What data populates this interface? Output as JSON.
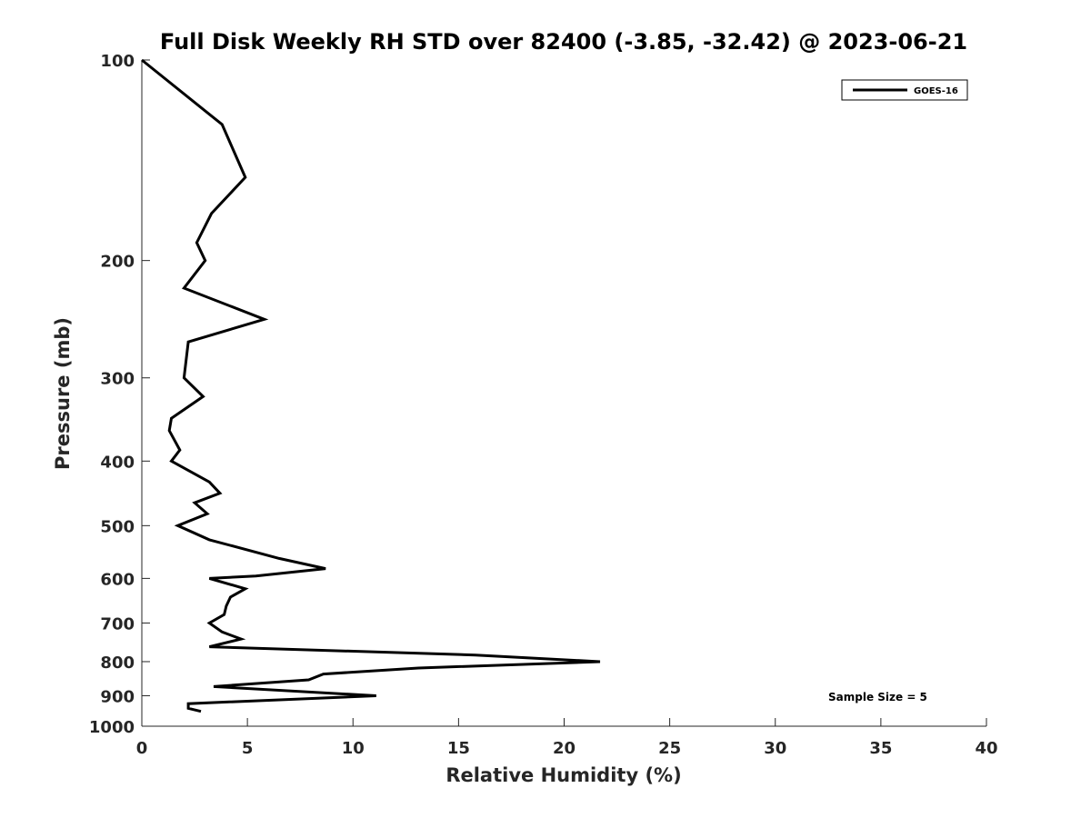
{
  "chart_data": {
    "type": "line",
    "title": "Full Disk Weekly RH STD over 82400 (-3.85, -32.42) @ 2023-06-21",
    "xlabel": "Relative Humidity (%)",
    "ylabel": "Pressure (mb)",
    "xlim": [
      0,
      40
    ],
    "ylim": [
      100,
      1000
    ],
    "yscale": "log",
    "y_reversed": true,
    "grid": false,
    "x_ticks": [
      "0",
      "5",
      "10",
      "15",
      "20",
      "25",
      "30",
      "35",
      "40"
    ],
    "y_ticks": [
      "100",
      "200",
      "300",
      "400",
      "500",
      "600",
      "700",
      "800",
      "900",
      "1000"
    ],
    "legend_position": "top-right",
    "annotation": "Sample Size = 5",
    "series": [
      {
        "name": "GOES-16",
        "color": "#000000",
        "points": [
          [
            0.0,
            100
          ],
          [
            3.8,
            125
          ],
          [
            4.9,
            150
          ],
          [
            3.3,
            170
          ],
          [
            2.6,
            188
          ],
          [
            3.0,
            200
          ],
          [
            2.0,
            220
          ],
          [
            5.8,
            245
          ],
          [
            2.2,
            265
          ],
          [
            2.0,
            300
          ],
          [
            2.9,
            320
          ],
          [
            1.4,
            345
          ],
          [
            1.3,
            360
          ],
          [
            1.8,
            385
          ],
          [
            1.4,
            400
          ],
          [
            3.2,
            430
          ],
          [
            3.7,
            447
          ],
          [
            2.5,
            462
          ],
          [
            3.1,
            480
          ],
          [
            1.7,
            500
          ],
          [
            3.2,
            525
          ],
          [
            6.5,
            560
          ],
          [
            8.7,
            580
          ],
          [
            5.4,
            595
          ],
          [
            3.2,
            600
          ],
          [
            4.9,
            622
          ],
          [
            4.2,
            640
          ],
          [
            4.0,
            660
          ],
          [
            3.9,
            680
          ],
          [
            3.2,
            700
          ],
          [
            3.8,
            722
          ],
          [
            4.7,
            740
          ],
          [
            3.2,
            760
          ],
          [
            15.8,
            782
          ],
          [
            21.7,
            800
          ],
          [
            13.1,
            818
          ],
          [
            8.6,
            835
          ],
          [
            7.9,
            852
          ],
          [
            3.4,
            872
          ],
          [
            11.1,
            900
          ],
          [
            2.2,
            925
          ],
          [
            2.2,
            940
          ],
          [
            2.8,
            950
          ]
        ]
      }
    ]
  }
}
